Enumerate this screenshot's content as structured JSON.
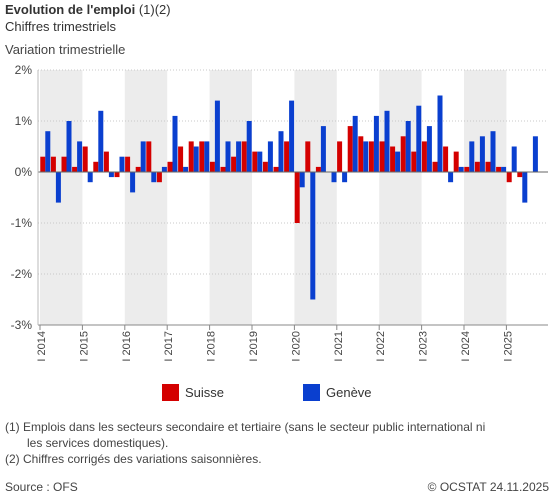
{
  "header": {
    "title_bold": "Evolution de l'emploi",
    "title_notes": "(1)(2)",
    "subtitle": "Chiffres trimestriels",
    "ylabel": "Variation trimestrielle"
  },
  "legend": {
    "suisse": "Suisse",
    "geneve": "Genève"
  },
  "footnotes": {
    "note1_line1": "(1) Emplois dans les secteurs secondaire et tertiaire (sans le secteur public international ni",
    "note1_line2": "les services domestiques).",
    "note2": "(2) Chiffres corrigés des variations saisonnières."
  },
  "footer": {
    "source": "Source : OFS",
    "copyright": "© OCSTAT 24.11.2025"
  },
  "colors": {
    "suisse": "#d40000",
    "geneve": "#0a3fcf",
    "band": "#ececec",
    "grid": "#c8c8c8"
  },
  "chart_data": {
    "type": "bar",
    "x_unit": "quarter",
    "ylim": [
      -3,
      2
    ],
    "y_ticks": [
      "2%",
      "1%",
      "0%",
      "-1%",
      "-2%",
      "-3%"
    ],
    "categories": [
      "2014 Q1",
      "2014 Q2",
      "2014 Q3",
      "2014 Q4",
      "2015 Q1",
      "2015 Q2",
      "2015 Q3",
      "2015 Q4",
      "2016 Q1",
      "2016 Q2",
      "2016 Q3",
      "2016 Q4",
      "2017 Q1",
      "2017 Q2",
      "2017 Q3",
      "2017 Q4",
      "2018 Q1",
      "2018 Q2",
      "2018 Q3",
      "2018 Q4",
      "2019 Q1",
      "2019 Q2",
      "2019 Q3",
      "2019 Q4",
      "2020 Q1",
      "2020 Q2",
      "2020 Q3",
      "2020 Q4",
      "2021 Q1",
      "2021 Q2",
      "2021 Q3",
      "2021 Q4",
      "2022 Q1",
      "2022 Q2",
      "2022 Q3",
      "2022 Q4",
      "2023 Q1",
      "2023 Q2",
      "2023 Q3",
      "2023 Q4",
      "2024 Q1",
      "2024 Q2",
      "2024 Q3",
      "2024 Q4",
      "2025 Q1",
      "2025 Q2",
      "2025 Q3"
    ],
    "x_tick_labels": [
      "I 2014",
      "I 2015",
      "I 2016",
      "I 2017",
      "I 2018",
      "I 2019",
      "I 2020",
      "I 2021",
      "I 2022",
      "I 2023",
      "I 2024",
      "I 2025"
    ],
    "series": [
      {
        "name": "Suisse",
        "values": [
          0.3,
          0.3,
          0.3,
          0.1,
          0.5,
          0.2,
          0.4,
          -0.1,
          0.3,
          0.1,
          0.6,
          -0.2,
          0.2,
          0.5,
          0.6,
          0.6,
          0.2,
          0.1,
          0.3,
          0.6,
          0.4,
          0.2,
          0.1,
          0.6,
          -1.0,
          0.6,
          0.1,
          0.0,
          0.6,
          0.9,
          0.7,
          0.6,
          0.6,
          0.5,
          0.7,
          0.4,
          0.6,
          0.2,
          0.5,
          0.4,
          0.1,
          0.2,
          0.2,
          0.1,
          -0.2,
          -0.1,
          0.0
        ]
      },
      {
        "name": "Genève",
        "values": [
          0.8,
          -0.6,
          1.0,
          0.6,
          -0.2,
          1.2,
          -0.1,
          0.3,
          -0.4,
          0.6,
          -0.2,
          0.1,
          1.1,
          0.1,
          0.5,
          0.6,
          1.4,
          0.6,
          0.6,
          1.0,
          0.4,
          0.6,
          0.8,
          1.4,
          -0.3,
          -2.5,
          0.9,
          -0.2,
          -0.2,
          1.1,
          0.6,
          1.1,
          1.2,
          0.4,
          1.0,
          1.3,
          0.9,
          1.5,
          -0.2,
          0.1,
          0.6,
          0.7,
          0.8,
          0.1,
          0.5,
          -0.6,
          0.7
        ]
      }
    ]
  }
}
